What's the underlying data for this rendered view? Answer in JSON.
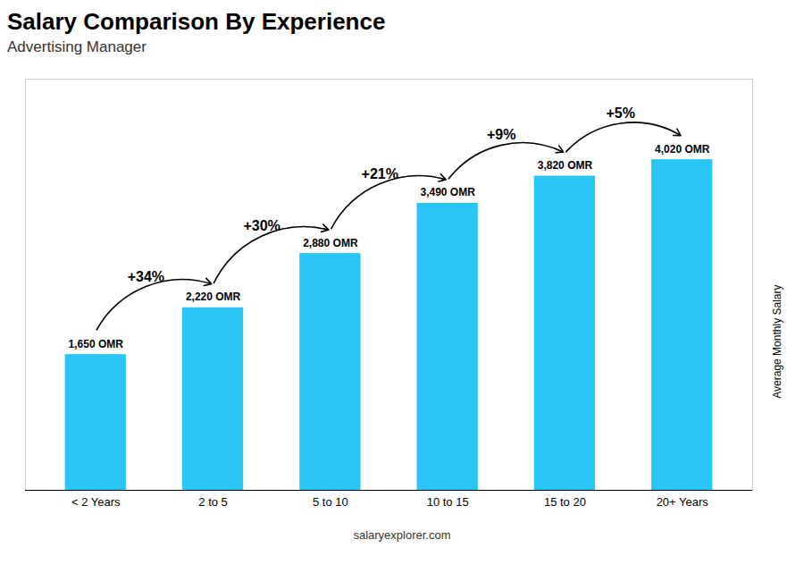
{
  "chart_data": {
    "type": "bar",
    "title": "Salary Comparison By Experience",
    "subtitle": "Advertising Manager",
    "categories": [
      "< 2 Years",
      "2 to 5",
      "5 to 10",
      "10 to 15",
      "15 to 20",
      "20+ Years"
    ],
    "values": [
      1650,
      2220,
      2880,
      3490,
      3820,
      4020
    ],
    "value_labels": [
      "1,650 OMR",
      "2,220 OMR",
      "2,880 OMR",
      "3,490 OMR",
      "3,820 OMR",
      "4,020 OMR"
    ],
    "data_labels": true,
    "color": "#29C5F6",
    "ylim": [
      0,
      5000
    ],
    "ylabel": "Average Monthly Salary",
    "tick_labels": "x",
    "annotations": [
      "+34%",
      "+30%",
      "+21%",
      "+9%",
      "+5%"
    ],
    "caption": "salaryexplorer.com"
  }
}
